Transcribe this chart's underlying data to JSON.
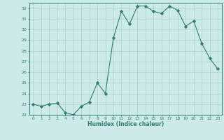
{
  "x": [
    0,
    1,
    2,
    3,
    4,
    5,
    6,
    7,
    8,
    9,
    10,
    11,
    12,
    13,
    14,
    15,
    16,
    17,
    18,
    19,
    20,
    21,
    22,
    23
  ],
  "y": [
    23.0,
    22.8,
    23.0,
    23.1,
    22.2,
    22.0,
    22.8,
    23.2,
    25.0,
    24.0,
    29.2,
    31.7,
    30.5,
    32.2,
    32.2,
    31.7,
    31.5,
    32.2,
    31.8,
    30.3,
    30.8,
    28.7,
    27.3,
    26.3
  ],
  "line_color": "#2e7d6e",
  "marker": "D",
  "marker_size": 2.2,
  "bg_color": "#cceaea",
  "grid_color": "#b0d0d0",
  "xlabel": "Humidex (Indice chaleur)",
  "ylim": [
    22,
    32.5
  ],
  "yticks": [
    22,
    23,
    24,
    25,
    26,
    27,
    28,
    29,
    30,
    31,
    32
  ],
  "xlim": [
    -0.5,
    23.5
  ],
  "xticks": [
    0,
    1,
    2,
    3,
    4,
    5,
    6,
    7,
    8,
    9,
    10,
    11,
    12,
    13,
    14,
    15,
    16,
    17,
    18,
    19,
    20,
    21,
    22,
    23
  ],
  "label_color": "#2e7d6e",
  "tick_color": "#2e7d6e",
  "spine_color": "#2e7d6e"
}
